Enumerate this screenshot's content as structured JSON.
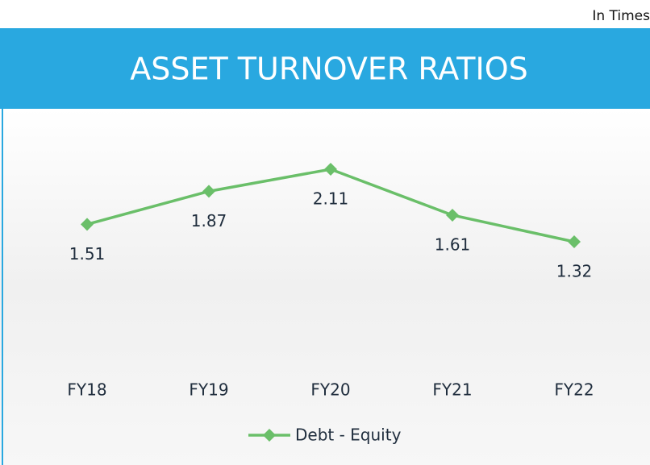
{
  "note": "In Times",
  "chart_data": {
    "type": "line",
    "title": "ASSET TURNOVER RATIOS",
    "categories": [
      "FY18",
      "FY19",
      "FY20",
      "FY21",
      "FY22"
    ],
    "series": [
      {
        "name": "Debt - Equity",
        "color": "#6abf69",
        "values": [
          1.51,
          1.87,
          2.11,
          1.61,
          1.32
        ]
      }
    ]
  }
}
